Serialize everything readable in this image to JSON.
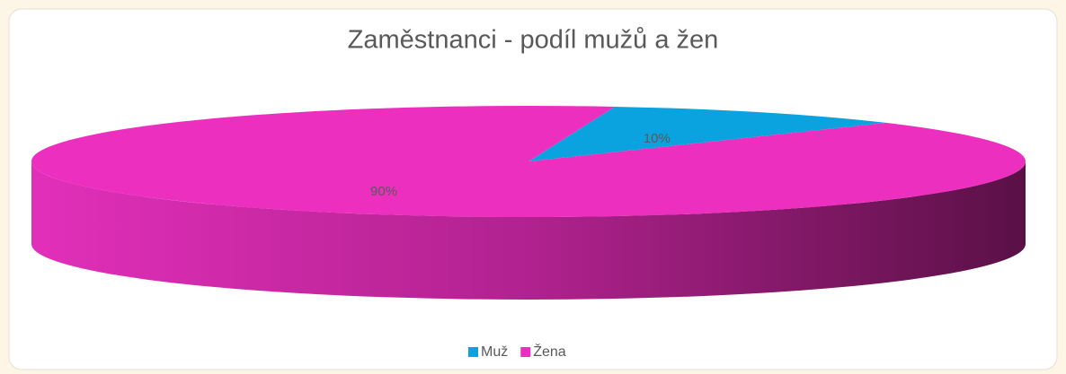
{
  "chart_data": {
    "type": "pie",
    "title": "Zaměstnanci  - podíl mužů a žen",
    "categories": [
      "Muž",
      "Žena"
    ],
    "values": [
      10,
      90
    ],
    "value_labels": [
      "10%",
      "90%"
    ],
    "colors": [
      "#0aa3e0",
      "#ec2fbf"
    ],
    "legend": "bottom"
  }
}
